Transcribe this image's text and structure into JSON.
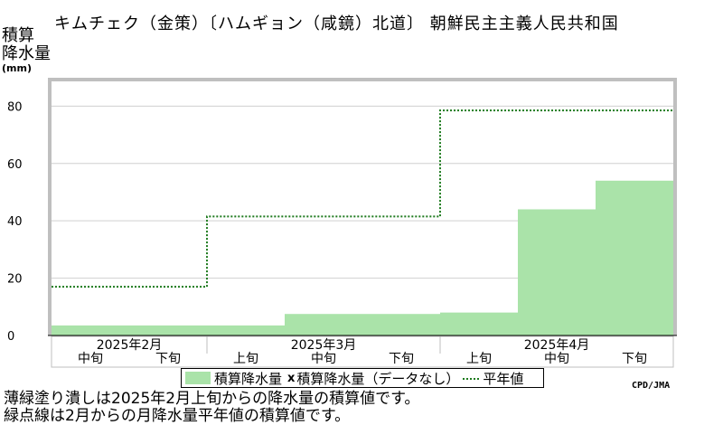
{
  "chart_data": {
    "type": "bar",
    "title": "キムチェク（金策）〔ハムギョン（咸鏡）北道〕 朝鮮民主主義人民共和国",
    "ylabel": [
      "積算",
      "降水量"
    ],
    "yunit": "(mm)",
    "ylim": [
      0,
      88
    ],
    "yticks": [
      0,
      20,
      40,
      60,
      80
    ],
    "periods": [
      "中旬",
      "下旬",
      "上旬",
      "中旬",
      "下旬",
      "上旬",
      "中旬",
      "下旬"
    ],
    "months": [
      {
        "label": "2025年2月",
        "start": 0,
        "count": 2
      },
      {
        "label": "2025年3月",
        "start": 2,
        "count": 3
      },
      {
        "label": "2025年4月",
        "start": 5,
        "count": 3
      }
    ],
    "series": [
      {
        "name": "積算降水量",
        "kind": "bar",
        "color": "#aae3a9",
        "values": [
          3.5,
          3.5,
          3.5,
          7.5,
          7.5,
          8.0,
          44.0,
          54.0
        ]
      },
      {
        "name": "平年値",
        "kind": "step-dotted",
        "color": "#1d7a1d",
        "values": [
          17,
          17,
          41.5,
          41.5,
          41.5,
          78.5,
          78.5,
          78.5
        ]
      }
    ],
    "grid": true,
    "legend": {
      "position": "bottom",
      "bar_label": "積算降水量",
      "nodata_mark": "x",
      "nodata_label": "積算降水量（データなし）",
      "normal_label": "平年値"
    }
  },
  "credit": "CPD/JMA",
  "notes": [
    "薄緑塗り潰しは2025年2月上旬からの降水量の積算値です。",
    "緑点線は2月からの月降水量平年値の積算値です。"
  ]
}
